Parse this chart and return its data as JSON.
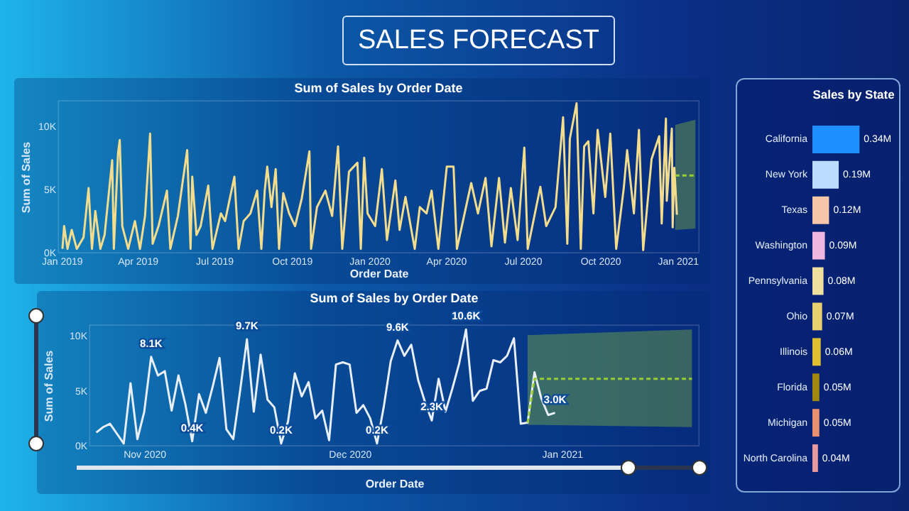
{
  "chart_data": [
    {
      "type": "other",
      "title": "SALES FORECAST"
    },
    {
      "type": "line",
      "title": "Sum of Sales by Order Date",
      "xlabel": "Order Date",
      "ylabel": "Sum of Sales",
      "xlim": [
        "2018-12-28",
        "2021-01-26"
      ],
      "ylim": [
        0,
        12000
      ],
      "xticks": [
        {
          "value": "2019-01-01",
          "label": "Jan 2019"
        },
        {
          "value": "2019-04-01",
          "label": "Apr 2019"
        },
        {
          "value": "2019-07-01",
          "label": "Jul 2019"
        },
        {
          "value": "2019-10-01",
          "label": "Oct 2019"
        },
        {
          "value": "2020-01-01",
          "label": "Jan 2020"
        },
        {
          "value": "2020-04-01",
          "label": "Apr 2020"
        },
        {
          "value": "2020-07-01",
          "label": "Jul 2020"
        },
        {
          "value": "2020-10-01",
          "label": "Oct 2020"
        },
        {
          "value": "2021-01-01",
          "label": "Jan 2021"
        }
      ],
      "yticks": [
        {
          "value": 0,
          "label": "0K"
        },
        {
          "value": 5000,
          "label": "5K"
        },
        {
          "value": 10000,
          "label": "10K"
        }
      ],
      "series": [
        {
          "color": "#f3dc8c",
          "x": [
            "2019-01-02",
            "2019-01-04",
            "2019-01-08",
            "2019-01-13",
            "2019-01-19",
            "2019-01-27",
            "2019-02-02",
            "2019-02-06",
            "2019-02-10",
            "2019-02-16",
            "2019-02-21",
            "2019-03-02",
            "2019-03-04",
            "2019-03-09",
            "2019-03-11",
            "2019-03-14",
            "2019-03-21",
            "2019-03-29",
            "2019-04-04",
            "2019-04-10",
            "2019-04-16",
            "2019-04-19",
            "2019-04-26",
            "2019-05-06",
            "2019-05-10",
            "2019-05-19",
            "2019-05-24",
            "2019-05-30",
            "2019-06-03",
            "2019-06-05",
            "2019-06-10",
            "2019-06-15",
            "2019-06-24",
            "2019-06-29",
            "2019-07-09",
            "2019-07-14",
            "2019-07-25",
            "2019-07-30",
            "2019-08-05",
            "2019-08-13",
            "2019-08-21",
            "2019-08-26",
            "2019-08-30",
            "2019-09-02",
            "2019-09-07",
            "2019-09-12",
            "2019-09-16",
            "2019-09-21",
            "2019-09-28",
            "2019-10-05",
            "2019-10-13",
            "2019-10-22",
            "2019-10-24",
            "2019-10-31",
            "2019-11-10",
            "2019-11-18",
            "2019-11-25",
            "2019-11-30",
            "2019-12-08",
            "2019-12-18",
            "2019-12-22",
            "2019-12-26",
            "2019-12-30",
            "2020-01-08",
            "2020-01-16",
            "2020-01-22",
            "2020-02-01",
            "2020-02-06",
            "2020-02-13",
            "2020-02-24",
            "2020-03-01",
            "2020-03-09",
            "2020-03-15",
            "2020-03-23",
            "2020-04-02",
            "2020-04-10",
            "2020-04-14",
            "2020-05-01",
            "2020-05-09",
            "2020-05-18",
            "2020-05-25",
            "2020-06-03",
            "2020-06-10",
            "2020-06-17",
            "2020-06-25",
            "2020-07-03",
            "2020-07-07",
            "2020-07-22",
            "2020-07-29",
            "2020-08-09",
            "2020-08-18",
            "2020-08-23",
            "2020-08-26",
            "2020-09-03",
            "2020-09-08",
            "2020-09-12",
            "2020-09-17",
            "2020-09-23",
            "2020-09-28",
            "2020-10-07",
            "2020-10-13",
            "2020-10-20",
            "2020-10-29",
            "2020-11-02",
            "2020-11-10",
            "2020-11-16",
            "2020-11-21",
            "2020-12-01",
            "2020-12-10",
            "2020-12-13",
            "2020-12-18",
            "2020-12-19",
            "2020-12-25",
            "2020-12-26",
            "2020-12-28",
            "2020-12-31"
          ],
          "values": [
            300,
            2100,
            300,
            1800,
            300,
            1200,
            5100,
            300,
            3300,
            300,
            1400,
            7300,
            300,
            7900,
            8900,
            2100,
            300,
            2500,
            300,
            2900,
            9400,
            700,
            2100,
            4900,
            300,
            2900,
            5300,
            8100,
            300,
            6000,
            1400,
            2100,
            5300,
            300,
            3100,
            2500,
            6000,
            300,
            2500,
            3100,
            4900,
            300,
            4900,
            6800,
            3600,
            6600,
            300,
            4700,
            3100,
            2100,
            4300,
            8000,
            300,
            3600,
            4900,
            2900,
            8400,
            300,
            6400,
            7100,
            300,
            7500,
            3100,
            2100,
            6600,
            1000,
            5700,
            1800,
            4400,
            300,
            3600,
            3100,
            4900,
            300,
            6800,
            6800,
            300,
            5500,
            3100,
            5900,
            500,
            5900,
            800,
            5100,
            1000,
            8300,
            300,
            5200,
            2100,
            3600,
            10700,
            700,
            9000,
            11800,
            300,
            8400,
            8800,
            3100,
            9700,
            4400,
            9400,
            300,
            5100,
            8100,
            3100,
            9700,
            200,
            7400,
            9200,
            2300,
            10600,
            4100,
            9800,
            2000,
            6700,
            3000
          ]
        },
        {
          "color": "#9acd32",
          "line_style": "dashed",
          "x": [
            "2020-12-29",
            "2021-01-22"
          ],
          "values": [
            6100,
            6100
          ],
          "lower": [
            1800,
            1900
          ],
          "upper": [
            10100,
            10500
          ]
        }
      ]
    },
    {
      "type": "line",
      "title": "Sum of Sales by Order Date",
      "xlabel": "Order Date",
      "ylabel": "Sum of Sales",
      "xlim": [
        "2020-10-24",
        "2021-01-21"
      ],
      "ylim": [
        0,
        11000
      ],
      "xticks": [
        {
          "value": "2020-11-01",
          "label": "Nov 2020"
        },
        {
          "value": "2020-12-01",
          "label": "Dec 2020"
        },
        {
          "value": "2021-01-01",
          "label": "Jan 2021"
        }
      ],
      "yticks": [
        {
          "value": 0,
          "label": "0K"
        },
        {
          "value": 5000,
          "label": "5K"
        },
        {
          "value": 10000,
          "label": "10K"
        }
      ],
      "series": [
        {
          "color": "#e8eef5",
          "x": [
            "2020-10-25",
            "2020-10-26",
            "2020-10-27",
            "2020-10-28",
            "2020-10-29",
            "2020-10-30",
            "2020-10-31",
            "2020-11-01",
            "2020-11-02",
            "2020-11-03",
            "2020-11-04",
            "2020-11-05",
            "2020-11-06",
            "2020-11-07",
            "2020-11-08",
            "2020-11-09",
            "2020-11-10",
            "2020-11-11",
            "2020-11-12",
            "2020-11-13",
            "2020-11-14",
            "2020-11-15",
            "2020-11-16",
            "2020-11-17",
            "2020-11-18",
            "2020-11-19",
            "2020-11-20",
            "2020-11-21",
            "2020-11-22",
            "2020-11-23",
            "2020-11-24",
            "2020-11-25",
            "2020-11-26",
            "2020-11-27",
            "2020-11-28",
            "2020-11-29",
            "2020-11-30",
            "2020-12-01",
            "2020-12-02",
            "2020-12-03",
            "2020-12-04",
            "2020-12-05",
            "2020-12-06",
            "2020-12-07",
            "2020-12-08",
            "2020-12-09",
            "2020-12-10",
            "2020-12-11",
            "2020-12-12",
            "2020-12-13",
            "2020-12-14",
            "2020-12-15",
            "2020-12-16",
            "2020-12-17",
            "2020-12-18",
            "2020-12-19",
            "2020-12-20",
            "2020-12-21",
            "2020-12-22",
            "2020-12-23",
            "2020-12-24",
            "2020-12-25",
            "2020-12-26",
            "2020-12-27",
            "2020-12-28",
            "2020-12-29",
            "2020-12-30",
            "2020-12-31"
          ],
          "values": [
            1200,
            1700,
            2000,
            1100,
            200,
            5700,
            600,
            3100,
            8100,
            6400,
            6800,
            3200,
            6400,
            3800,
            400,
            4700,
            3000,
            5400,
            8000,
            1500,
            600,
            5000,
            9700,
            3100,
            8300,
            4200,
            3500,
            200,
            2200,
            6600,
            4500,
            5800,
            2500,
            3200,
            500,
            7400,
            7600,
            7400,
            3000,
            3700,
            2500,
            200,
            3600,
            7700,
            9600,
            8200,
            9200,
            6000,
            4000,
            2300,
            6100,
            3100,
            5200,
            7500,
            10600,
            4100,
            5000,
            5200,
            7800,
            7600,
            8200,
            9800,
            2000,
            2100,
            6700,
            4300,
            2800,
            3000
          ],
          "value_labels": [
            null,
            null,
            null,
            null,
            null,
            null,
            null,
            null,
            "8.1K",
            null,
            null,
            null,
            null,
            null,
            "0.4K",
            null,
            null,
            null,
            null,
            null,
            null,
            null,
            "9.7K",
            null,
            null,
            null,
            null,
            "0.2K",
            null,
            null,
            null,
            null,
            null,
            null,
            null,
            null,
            null,
            null,
            null,
            null,
            null,
            "0.2K",
            null,
            null,
            "9.6K",
            null,
            null,
            null,
            null,
            "2.3K",
            null,
            null,
            null,
            null,
            "10.6K",
            null,
            null,
            null,
            null,
            null,
            null,
            null,
            null,
            null,
            null,
            null,
            null,
            "3.0K"
          ]
        },
        {
          "color": "#9acd32",
          "line_style": "dashed",
          "x": [
            "2020-12-27",
            "2020-12-28",
            "2021-01-20"
          ],
          "values": [
            2100,
            6100,
            6100
          ],
          "lower": [
            1900,
            1900,
            1700
          ],
          "upper": [
            10100,
            10100,
            10600
          ]
        }
      ]
    },
    {
      "type": "bar",
      "orientation": "horizontal",
      "title": "Sales by State",
      "categories": [
        "California",
        "New York",
        "Texas",
        "Washington",
        "Pennsylvania",
        "Ohio",
        "Illinois",
        "Florida",
        "Michigan",
        "North Carolina"
      ],
      "values": [
        0.34,
        0.19,
        0.12,
        0.09,
        0.08,
        0.07,
        0.06,
        0.05,
        0.05,
        0.04
      ],
      "value_labels": [
        "0.34M",
        "0.19M",
        "0.12M",
        "0.09M",
        "0.08M",
        "0.07M",
        "0.06M",
        "0.05M",
        "0.05M",
        "0.04M"
      ],
      "colors": [
        "#1e8fff",
        "#bcdcff",
        "#f6c6a8",
        "#f0b8e0",
        "#f0e0a0",
        "#e8cf70",
        "#e0c030",
        "#a08810",
        "#e89070",
        "#e89aa0"
      ]
    }
  ]
}
